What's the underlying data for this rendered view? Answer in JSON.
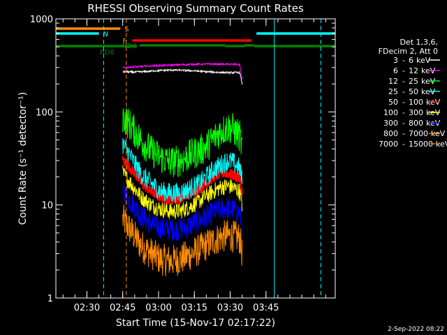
{
  "chart_data": {
    "type": "line",
    "title": "RHESSI Observing Summary Count Rates",
    "xlabel": "Start Time (15-Nov-17 02:17:22)",
    "ylabel": "Count Rate (s⁻¹ detector⁻¹)",
    "yscale": "log",
    "ylim": [
      1,
      1000
    ],
    "xlim_min": [
      0,
      117
    ],
    "x_ticks": [
      {
        "t": 13,
        "label": "02:30"
      },
      {
        "t": 28,
        "label": "02:45"
      },
      {
        "t": 43,
        "label": "03:00"
      },
      {
        "t": 58,
        "label": "03:15"
      },
      {
        "t": 73,
        "label": "03:30"
      },
      {
        "t": 88,
        "label": "03:45"
      }
    ],
    "y_ticks": [
      {
        "v": 1,
        "label": "1"
      },
      {
        "v": 10,
        "label": "10"
      },
      {
        "v": 100,
        "label": "100"
      },
      {
        "v": 1000,
        "label": "1000"
      }
    ],
    "legend_header": [
      "Det 1,3,6,",
      "FDecim 2, Att 0"
    ],
    "legend_position": "right",
    "series": [
      {
        "name": "3 - 6 keV",
        "label_parts": [
          "3",
          "-",
          "6",
          "keV"
        ],
        "color": "#ffffff",
        "values": [
          [
            28,
            270
          ],
          [
            33,
            268
          ],
          [
            38,
            272
          ],
          [
            43,
            278
          ],
          [
            48,
            282
          ],
          [
            53,
            280
          ],
          [
            58,
            276
          ],
          [
            63,
            270
          ],
          [
            68,
            266
          ],
          [
            73,
            264
          ],
          [
            77,
            265
          ],
          [
            78,
            200
          ]
        ]
      },
      {
        "name": "6 - 12 keV",
        "label_parts": [
          "6",
          "-",
          "12",
          "keV"
        ],
        "color": "#ff00ff",
        "values": [
          [
            28,
            300
          ],
          [
            33,
            305
          ],
          [
            38,
            310
          ],
          [
            43,
            315
          ],
          [
            48,
            318
          ],
          [
            53,
            322
          ],
          [
            58,
            325
          ],
          [
            63,
            327
          ],
          [
            68,
            326
          ],
          [
            73,
            325
          ],
          [
            77,
            322
          ],
          [
            78,
            220
          ]
        ]
      },
      {
        "name": "12 - 25 keV",
        "label_parts": [
          "12",
          "-",
          "25",
          "keV"
        ],
        "color": "#00ff00",
        "values": [
          [
            28,
            88
          ],
          [
            30,
            78
          ],
          [
            33,
            62
          ],
          [
            36,
            48
          ],
          [
            40,
            38
          ],
          [
            44,
            32
          ],
          [
            48,
            29
          ],
          [
            52,
            30
          ],
          [
            56,
            34
          ],
          [
            60,
            38
          ],
          [
            63,
            42
          ],
          [
            66,
            52
          ],
          [
            69,
            62
          ],
          [
            72,
            68
          ],
          [
            74,
            66
          ],
          [
            76,
            58
          ],
          [
            77,
            55
          ],
          [
            78,
            40
          ]
        ]
      },
      {
        "name": "25 - 50 keV",
        "label_parts": [
          "25",
          "-",
          "50",
          "keV"
        ],
        "color": "#00ffff",
        "values": [
          [
            28,
            45
          ],
          [
            30,
            38
          ],
          [
            33,
            28
          ],
          [
            36,
            21
          ],
          [
            40,
            17
          ],
          [
            44,
            14
          ],
          [
            48,
            13.5
          ],
          [
            52,
            13.5
          ],
          [
            56,
            15
          ],
          [
            60,
            17
          ],
          [
            63,
            20
          ],
          [
            66,
            24
          ],
          [
            69,
            27
          ],
          [
            72,
            30
          ],
          [
            74,
            29
          ],
          [
            76,
            26
          ],
          [
            77,
            25
          ],
          [
            78,
            18
          ]
        ]
      },
      {
        "name": "50 - 100 keV",
        "label_parts": [
          "50",
          "-",
          "100",
          "keV"
        ],
        "color": "#ff0000",
        "values": [
          [
            28,
            30
          ],
          [
            30,
            27
          ],
          [
            33,
            22
          ],
          [
            36,
            17
          ],
          [
            40,
            14
          ],
          [
            44,
            12
          ],
          [
            48,
            11.5
          ],
          [
            52,
            11.8
          ],
          [
            56,
            13
          ],
          [
            60,
            15
          ],
          [
            63,
            17
          ],
          [
            66,
            20
          ],
          [
            69,
            22
          ],
          [
            72,
            22
          ],
          [
            74,
            21
          ],
          [
            76,
            20
          ],
          [
            77,
            19
          ],
          [
            78,
            14
          ]
        ]
      },
      {
        "name": "100 - 300 keV",
        "label_parts": [
          "100",
          "-",
          "300",
          "keV"
        ],
        "color": "#ffff00",
        "values": [
          [
            28,
            22
          ],
          [
            30,
            19
          ],
          [
            33,
            15
          ],
          [
            36,
            12
          ],
          [
            40,
            10
          ],
          [
            44,
            9
          ],
          [
            48,
            8.5
          ],
          [
            52,
            8.6
          ],
          [
            56,
            9.5
          ],
          [
            60,
            11
          ],
          [
            63,
            12.5
          ],
          [
            66,
            14
          ],
          [
            69,
            15.5
          ],
          [
            72,
            16
          ],
          [
            74,
            15.5
          ],
          [
            76,
            14.5
          ],
          [
            77,
            14
          ],
          [
            78,
            10
          ]
        ]
      },
      {
        "name": "300 - 800 keV",
        "label_parts": [
          "300",
          "-",
          "800",
          "keV"
        ],
        "color": "#0000ff",
        "values": [
          [
            28,
            14
          ],
          [
            30,
            12
          ],
          [
            33,
            9.5
          ],
          [
            36,
            7.5
          ],
          [
            40,
            6.3
          ],
          [
            44,
            5.6
          ],
          [
            48,
            5.4
          ],
          [
            52,
            5.5
          ],
          [
            56,
            6
          ],
          [
            60,
            6.8
          ],
          [
            63,
            7.6
          ],
          [
            66,
            8.4
          ],
          [
            69,
            9
          ],
          [
            72,
            9.2
          ],
          [
            74,
            9
          ],
          [
            76,
            8.6
          ],
          [
            77,
            8.2
          ],
          [
            78,
            6
          ]
        ]
      },
      {
        "name": "800 - 7000 keV",
        "label_parts": [
          "800",
          "-",
          "7000",
          "keV"
        ],
        "color": "#ff8c00",
        "values": [
          [
            28,
            7
          ],
          [
            30,
            6
          ],
          [
            33,
            4.6
          ],
          [
            36,
            3.6
          ],
          [
            40,
            3
          ],
          [
            44,
            2.6
          ],
          [
            48,
            2.5
          ],
          [
            52,
            2.6
          ],
          [
            56,
            2.9
          ],
          [
            60,
            3.3
          ],
          [
            63,
            3.7
          ],
          [
            66,
            4.1
          ],
          [
            69,
            4.5
          ],
          [
            72,
            4.7
          ],
          [
            74,
            4.6
          ],
          [
            76,
            4.5
          ],
          [
            77,
            4.4
          ],
          [
            78,
            3
          ]
        ]
      },
      {
        "name": "7000 - 15000 keV",
        "label_parts": [
          "7000",
          "-",
          "15000",
          "keV"
        ],
        "color": "#b8860b",
        "values": []
      }
    ],
    "state_bars": [
      {
        "label": "S",
        "color": "#ff8c00",
        "segments": [
          [
            0,
            27
          ]
        ]
      },
      {
        "label": "N",
        "color": "#00ffff",
        "segments": [
          [
            0,
            18
          ],
          [
            84,
            117
          ]
        ]
      },
      {
        "label": "F",
        "color": "#ff0000",
        "segments": [
          [
            32,
            82
          ]
        ]
      },
      {
        "label": "RD0",
        "color": "#008000",
        "segments": [
          [
            35,
            71
          ],
          [
            79,
            83
          ]
        ]
      },
      {
        "label": "RD6",
        "color": "#008000",
        "segments": [
          [
            0,
            26
          ],
          [
            26,
            34
          ],
          [
            71,
            79
          ],
          [
            83,
            117
          ]
        ]
      }
    ],
    "vertical_lines": [
      {
        "t": 20,
        "color": "#00ffff",
        "style": "dashed"
      },
      {
        "t": 29.5,
        "color": "#ff8c00",
        "style": "dashed"
      },
      {
        "t": 91.5,
        "color": "#00ffff",
        "style": "solid"
      },
      {
        "t": 111,
        "color": "#00ffff",
        "style": "dashed"
      }
    ]
  },
  "footer": {
    "date": "2-Sep-2022 08:22"
  }
}
